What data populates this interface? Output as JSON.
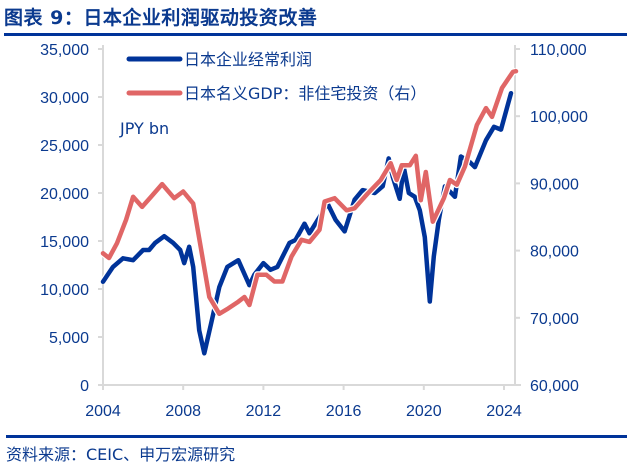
{
  "title": "图表 9：日本企业利润驱动投资改善",
  "source": "资料来源：CEIC、申万宏源研究",
  "chart_data": {
    "type": "line",
    "title": "图表 9：日本企业利润驱动投资改善",
    "unit_label": "JPY bn",
    "xlim": [
      2004,
      2024.6
    ],
    "x_ticks": [
      "2004",
      "2008",
      "2012",
      "2016",
      "2020",
      "2024"
    ],
    "y_left": {
      "lim": [
        0,
        35000
      ],
      "ticks": [
        "0",
        "5,000",
        "10,000",
        "15,000",
        "20,000",
        "25,000",
        "30,000",
        "35,000"
      ]
    },
    "y_right": {
      "lim": [
        60000,
        110000
      ],
      "ticks": [
        "60,000",
        "70,000",
        "80,000",
        "90,000",
        "100,000",
        "110,000"
      ]
    },
    "grid": false,
    "legend_position": "top-left",
    "series": [
      {
        "name": "日本企业经常利润",
        "axis": "left",
        "color": "#003399",
        "points": [
          [
            2004.0,
            10760
          ],
          [
            2004.5,
            12300
          ],
          [
            2005.0,
            13200
          ],
          [
            2005.5,
            13000
          ],
          [
            2006.0,
            14060
          ],
          [
            2006.3,
            14060
          ],
          [
            2006.6,
            14800
          ],
          [
            2007.05,
            15500
          ],
          [
            2007.5,
            14800
          ],
          [
            2007.85,
            14060
          ],
          [
            2008.05,
            12700
          ],
          [
            2008.3,
            14400
          ],
          [
            2008.5,
            12300
          ],
          [
            2008.8,
            5700
          ],
          [
            2009.05,
            3300
          ],
          [
            2009.4,
            6500
          ],
          [
            2009.8,
            10200
          ],
          [
            2010.2,
            12300
          ],
          [
            2010.75,
            13000
          ],
          [
            2011.3,
            10400
          ],
          [
            2011.55,
            11500
          ],
          [
            2012.0,
            12700
          ],
          [
            2012.35,
            12000
          ],
          [
            2012.7,
            12300
          ],
          [
            2013.3,
            14800
          ],
          [
            2013.6,
            15100
          ],
          [
            2014.05,
            16800
          ],
          [
            2014.3,
            15800
          ],
          [
            2014.8,
            17500
          ],
          [
            2015.2,
            18900
          ],
          [
            2015.6,
            17200
          ],
          [
            2016.05,
            16000
          ],
          [
            2016.55,
            19300
          ],
          [
            2016.95,
            20300
          ],
          [
            2017.55,
            20000
          ],
          [
            2017.95,
            20700
          ],
          [
            2018.25,
            23600
          ],
          [
            2018.45,
            21700
          ],
          [
            2018.8,
            19400
          ],
          [
            2019.0,
            22700
          ],
          [
            2019.25,
            20000
          ],
          [
            2019.55,
            19600
          ],
          [
            2019.8,
            18200
          ],
          [
            2020.05,
            15400
          ],
          [
            2020.3,
            8700
          ],
          [
            2020.5,
            13400
          ],
          [
            2020.75,
            17200
          ],
          [
            2021.05,
            20700
          ],
          [
            2021.55,
            19600
          ],
          [
            2021.85,
            23800
          ],
          [
            2022.25,
            23300
          ],
          [
            2022.55,
            22700
          ],
          [
            2023.1,
            25500
          ],
          [
            2023.5,
            26900
          ],
          [
            2023.85,
            26600
          ],
          [
            2024.35,
            30400
          ]
        ]
      },
      {
        "name": "日本名义GDP：非住宅投资（右）",
        "axis": "right",
        "color": "#E06666",
        "points": [
          [
            2004.0,
            79600
          ],
          [
            2004.3,
            78900
          ],
          [
            2004.7,
            81100
          ],
          [
            2005.15,
            84600
          ],
          [
            2005.5,
            88000
          ],
          [
            2005.95,
            86500
          ],
          [
            2006.4,
            88000
          ],
          [
            2006.95,
            89900
          ],
          [
            2007.55,
            87800
          ],
          [
            2008.0,
            88800
          ],
          [
            2008.5,
            87000
          ],
          [
            2008.9,
            80100
          ],
          [
            2009.3,
            73100
          ],
          [
            2009.8,
            70600
          ],
          [
            2010.25,
            71400
          ],
          [
            2010.75,
            72400
          ],
          [
            2011.05,
            73100
          ],
          [
            2011.3,
            71900
          ],
          [
            2011.7,
            76400
          ],
          [
            2012.15,
            76400
          ],
          [
            2012.55,
            75400
          ],
          [
            2012.95,
            75400
          ],
          [
            2013.4,
            79100
          ],
          [
            2013.9,
            81600
          ],
          [
            2014.3,
            81300
          ],
          [
            2014.8,
            83100
          ],
          [
            2015.05,
            87300
          ],
          [
            2015.55,
            87800
          ],
          [
            2016.15,
            86000
          ],
          [
            2016.55,
            86300
          ],
          [
            2017.2,
            88500
          ],
          [
            2017.85,
            90500
          ],
          [
            2018.35,
            93000
          ],
          [
            2018.65,
            90500
          ],
          [
            2018.9,
            92700
          ],
          [
            2019.3,
            92700
          ],
          [
            2019.6,
            94100
          ],
          [
            2019.85,
            87500
          ],
          [
            2020.1,
            91700
          ],
          [
            2020.45,
            84300
          ],
          [
            2021.0,
            87800
          ],
          [
            2021.3,
            90500
          ],
          [
            2021.65,
            89800
          ],
          [
            2022.05,
            92500
          ],
          [
            2022.65,
            98700
          ],
          [
            2023.1,
            101200
          ],
          [
            2023.4,
            99900
          ],
          [
            2023.9,
            104200
          ],
          [
            2024.45,
            106600
          ],
          [
            2024.6,
            106700
          ]
        ]
      }
    ]
  }
}
